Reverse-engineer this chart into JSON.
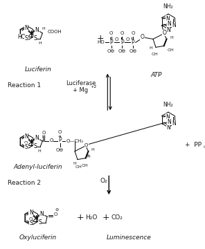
{
  "background_color": "#ffffff",
  "text_color": "#1a1a1a",
  "fig_width": 2.96,
  "fig_height": 3.6,
  "dpi": 100,
  "labels": {
    "luciferin": "Luciferin",
    "atp": "ATP",
    "reaction1": "Reaction 1",
    "luciferase_line1": "Luciferase",
    "luciferase_line2": "+ Mg",
    "mg_sup": "+2",
    "adenyl_luciferin": "Adenyl-luciferin",
    "ppi": "PP",
    "ppi_sub": "i",
    "reaction2": "Reaction 2",
    "o2": "O",
    "o2_sub": "2",
    "oxyluciferin": "Oxyluciferin",
    "luminescence": "Luminescence",
    "h2o": "H",
    "h2o_sub": "2",
    "h2o_suf": "O",
    "co2": "CO",
    "co2_sub": "2"
  }
}
